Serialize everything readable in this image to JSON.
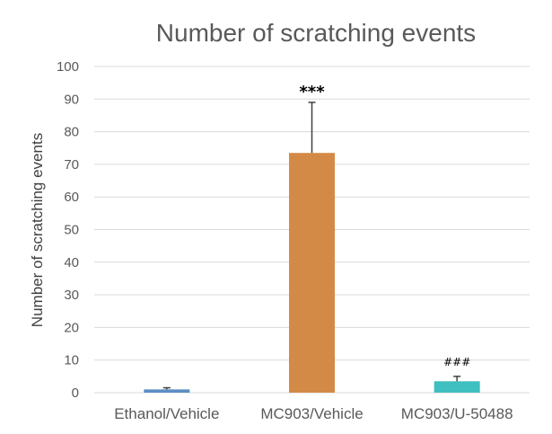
{
  "chart_data": {
    "type": "bar",
    "title": "Number of scratching events",
    "ylabel": "Number of scratching events",
    "xlabel": "",
    "categories": [
      "Ethanol/Vehicle",
      "MC903/Vehicle",
      "MC903/U-50488"
    ],
    "values": [
      1,
      73.5,
      3.5
    ],
    "errors": [
      0.5,
      15.5,
      1.5
    ],
    "annotations": [
      "",
      "***",
      "###"
    ],
    "ylim": [
      0,
      100
    ],
    "yticks": [
      0,
      10,
      20,
      30,
      40,
      50,
      60,
      70,
      80,
      90,
      100
    ],
    "grid": true,
    "legend": "none",
    "colors": [
      "#5b8fc4",
      "#d48a47",
      "#3fbfbf"
    ],
    "error_bar_color": "#404040",
    "gridline_color": "#d9d9d9"
  }
}
